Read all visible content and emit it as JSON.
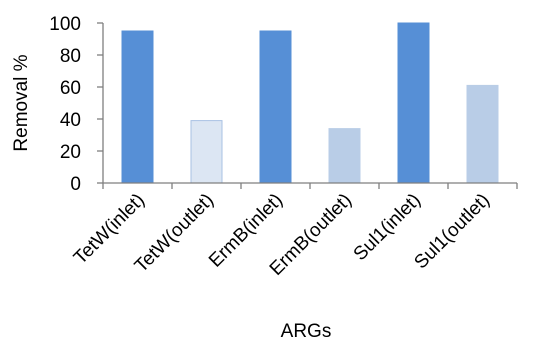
{
  "chart_data": {
    "type": "bar",
    "title": "",
    "xlabel": "ARGs",
    "ylabel": "Removal %",
    "ylim": [
      0,
      100
    ],
    "yticks": [
      0,
      20,
      40,
      60,
      80,
      100
    ],
    "grid": false,
    "legend": "none",
    "categories": [
      "TetW(inlet)",
      "TetW(outlet)",
      "ErmB(inlet)",
      "ErmB(outlet)",
      "Sul1(inlet)",
      "Sul1(outlet)"
    ],
    "values": [
      95,
      39,
      95,
      34,
      100,
      61
    ],
    "colors": [
      "#568fd6",
      "#dce6f3",
      "#568fd6",
      "#b9cde7",
      "#568fd6",
      "#b9cde7"
    ],
    "bar_outline_colors": [
      "#568fd6",
      "#a9c1e3",
      "#568fd6",
      "#b9cde7",
      "#568fd6",
      "#b9cde7"
    ],
    "axis_color": "#7f7f7f"
  }
}
